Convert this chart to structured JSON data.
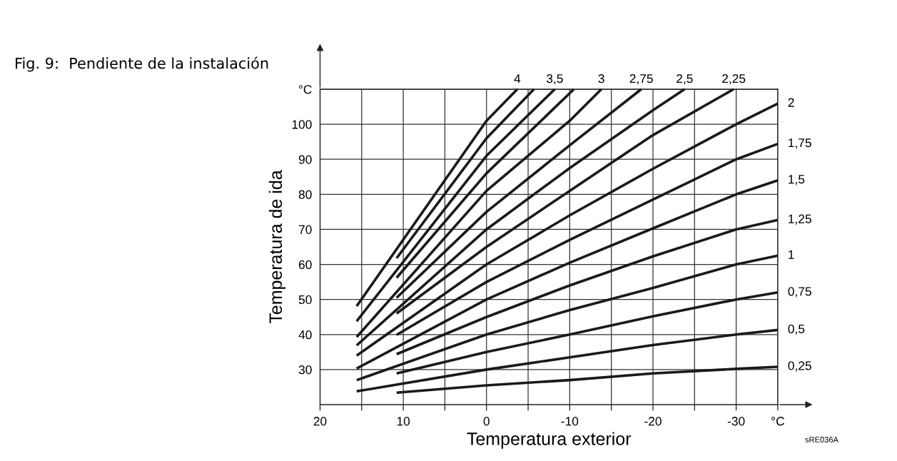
{
  "chart_data": {
    "type": "line",
    "title": "Fig. 9:  Pendiente de la instalación",
    "xlabel": "Temperatura exterior",
    "ylabel": "Temperatura de ida",
    "annotations": [
      "sRE036A"
    ],
    "xlim": [
      20,
      -35
    ],
    "ylim": [
      20,
      110
    ],
    "xticks": [
      20,
      {
        "value": 15,
        "label": null
      },
      10,
      {
        "value": 5,
        "label": null
      },
      0,
      {
        "value": -5,
        "label": null
      },
      -10,
      {
        "value": -15,
        "label": null
      },
      -20,
      {
        "value": -25,
        "label": null
      },
      -30,
      {
        "value": -35,
        "label": "°C"
      }
    ],
    "yticks": [
      30,
      40,
      50,
      60,
      70,
      80,
      90,
      100,
      {
        "value": 110,
        "label": "°C"
      }
    ],
    "grid": true,
    "legend": false,
    "marker": "none",
    "line_style": "solid",
    "series": [
      {
        "name": "4",
        "color": "#1a1a1a",
        "x": [
          15.6,
          0,
          -3.7
        ],
        "values": [
          48.1,
          101,
          110
        ]
      },
      {
        "color": "#1a1a1a",
        "x": [
          10.8,
          0,
          -5.7
        ],
        "values": [
          61.8,
          96,
          110
        ]
      },
      {
        "name": "3,5",
        "color": "#1a1a1a",
        "x": [
          15.6,
          0,
          -8.2
        ],
        "values": [
          43.8,
          91,
          110
        ]
      },
      {
        "color": "#1a1a1a",
        "x": [
          10.8,
          0,
          -10.5
        ],
        "values": [
          56.2,
          86,
          110
        ]
      },
      {
        "name": "3",
        "color": "#1a1a1a",
        "x": [
          15.6,
          0,
          -10,
          -13.8
        ],
        "values": [
          39.3,
          81,
          101,
          110
        ]
      },
      {
        "name": "2,75",
        "color": "#1a1a1a",
        "x": [
          10.8,
          0,
          -10,
          -18.6
        ],
        "values": [
          50.5,
          75,
          94,
          110
        ]
      },
      {
        "name": "2,5",
        "color": "#1a1a1a",
        "x": [
          15.6,
          0,
          -10,
          -20,
          -23.8
        ],
        "values": [
          36.9,
          70,
          87.5,
          104,
          110
        ]
      },
      {
        "name": "2,25",
        "color": "#1a1a1a",
        "x": [
          10.8,
          0,
          -10,
          -20,
          -29.7
        ],
        "values": [
          46.0,
          65,
          81,
          96.9,
          110
        ]
      },
      {
        "name": "2",
        "color": "#1a1a1a",
        "x": [
          15.6,
          0,
          -10,
          -20,
          -30,
          -35
        ],
        "values": [
          34.0,
          60,
          74,
          87.3,
          100,
          105.9
        ]
      },
      {
        "name": "1,75",
        "color": "#1a1a1a",
        "x": [
          10.8,
          0,
          -10,
          -20,
          -30,
          -35
        ],
        "values": [
          39.9,
          55,
          67,
          78.5,
          90,
          94.4
        ]
      },
      {
        "name": "1,5",
        "color": "#1a1a1a",
        "x": [
          15.6,
          0,
          -10,
          -20,
          -30,
          -35
        ],
        "values": [
          30.3,
          50,
          60.5,
          70.3,
          80,
          84.0
        ]
      },
      {
        "name": "1,25",
        "color": "#1a1a1a",
        "x": [
          10.8,
          0,
          -10,
          -20,
          -30,
          -35
        ],
        "values": [
          34.4,
          45,
          54,
          62.3,
          70,
          72.7
        ]
      },
      {
        "name": "1",
        "color": "#1a1a1a",
        "x": [
          15.6,
          0,
          -10,
          -20,
          -30,
          -35
        ],
        "values": [
          27.0,
          40,
          47,
          53.3,
          60,
          62.5
        ]
      },
      {
        "name": "0,75",
        "color": "#1a1a1a",
        "x": [
          10.8,
          0,
          -10,
          -20,
          -30,
          -35
        ],
        "values": [
          28.9,
          35,
          40,
          45.2,
          50,
          52.0
        ]
      },
      {
        "name": "0,5",
        "color": "#1a1a1a",
        "x": [
          15.6,
          0,
          -10,
          -20,
          -30,
          -35
        ],
        "values": [
          23.8,
          30,
          33.5,
          37,
          40,
          41.3
        ]
      },
      {
        "name": "0,25",
        "color": "#1a1a1a",
        "x": [
          10.8,
          0,
          -10,
          -20,
          -30,
          -35
        ],
        "values": [
          23.4,
          25.5,
          27,
          28.9,
          30.2,
          30.8
        ]
      }
    ]
  }
}
